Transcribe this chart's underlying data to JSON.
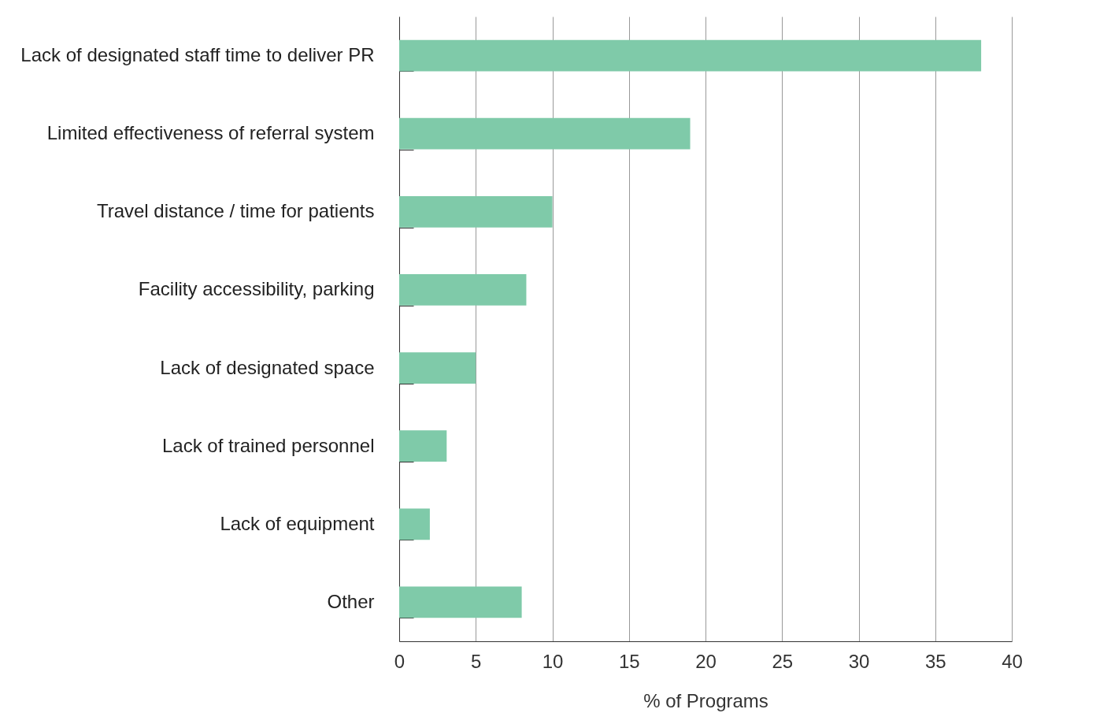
{
  "chart_data": {
    "type": "bar",
    "orientation": "horizontal",
    "xlabel": "% of Programs",
    "categories": [
      "Lack of designated staff time to deliver PR",
      "Limited effectiveness of referral system",
      "Travel distance / time for patients",
      "Facility accessibility, parking",
      "Lack of designated space",
      "Lack of trained personnel",
      "Lack of equipment",
      "Other"
    ],
    "values": [
      38,
      19,
      10,
      8.3,
      5,
      3.1,
      2,
      8
    ],
    "color": "#7fcaa9",
    "xlim": [
      0,
      40
    ],
    "xticks": [
      0,
      5,
      10,
      15,
      20,
      25,
      30,
      35,
      40
    ],
    "grid": "x"
  }
}
